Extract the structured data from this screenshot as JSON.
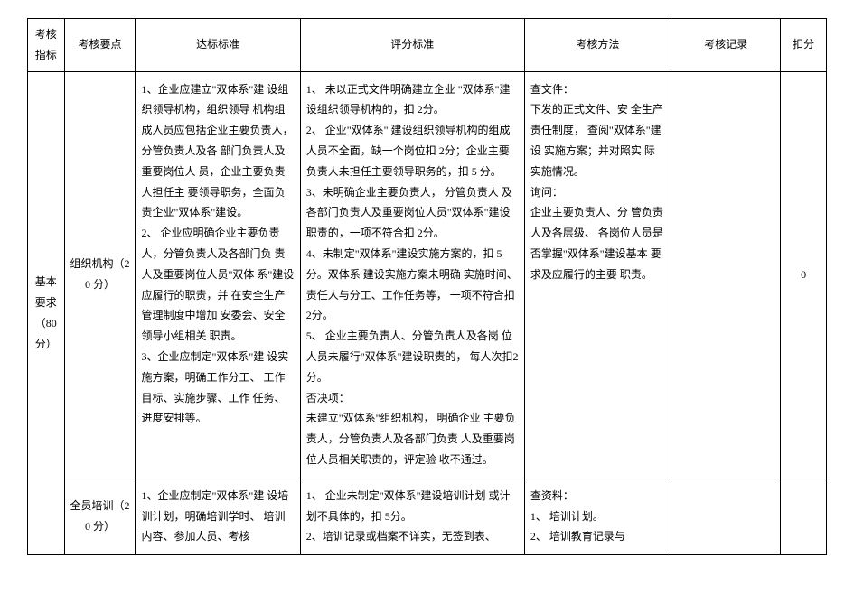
{
  "header": {
    "c1": "考核指标",
    "c2": "考核要点",
    "c3": "达标标准",
    "c4": "评分标准",
    "c5": "考核方法",
    "c6": "考核记录",
    "c7": "扣分"
  },
  "rows": {
    "indicator": "基本要求（80分）",
    "r1": {
      "point": "组织机构（20 分）",
      "standard": "1、企业应建立\"双体系\"建 设组织领导机构，组织领导 机构组成人员应包括企业主要负责人，分管负责人及各 部门负责人及重要岗位人 员，企业主要负责人担任主 要领导职务，全面负责企业\"双体系\"建设。\n2、 企业应明确企业主要负责人，分管负责人及各部门负 责人及重要岗位人员\"双体 系\"建设应履行的职责，并 在安全生产管理制度中增加 安委会、安全领导小组相关 职责。\n3、企业应制定\"双体系\"建 设实施方案，明确工作分工、 工作目标、实施步骤、工作 任务、进度安排等。",
      "score": "1、 未以正式文件明确建立企业 \"双体系\"建设组织领导机构的，扣 2分。\n2、 企业\"双体系\" 建设组织领导机构的组成人员不全面，缺一个岗位扣   2分；企业主要负责人未担任主要领导职务的，扣 5 分。\n3、未明确企业主要负责人， 分管负责人 及各部门负责人及重要岗位人员\"双体系\"建设职责的，一项不符合扣   2分。\n4、未制定\"双体系\"建设实施方案的，扣 5 分。双体系 建设实施方案未明确 实施时间、责任人与分工、工作任务等， 一项不符合扣 2分。\n5、 企业主要负责人、分管负责人及各岗 位人员未履行\"双体系\"建设职责的， 每人次扣2分。\n否决项：\n未建立\"双体系\"组织机构， 明确企业 主要负责人，分管负责人及各部门负责 人及重要岗位人员相关职责的，评定验 收不通过。",
      "method": "查文件：\n下发的正式文件、安 全生产责任制度， 查阅\"双体系\"建设 实施方案；并对照实 际实施情况。\n询问：\n企业主要负责人、分 管负责人及各层级、 各岗位人员是否掌握\"双体系\"建设基本 要求及应履行的主要 职责。",
      "record": "",
      "deduct": "0"
    },
    "r2": {
      "point": "全员培训（20 分）",
      "standard": "1、企业应制定\"双体系\"建 设培训计划，明确培训学时、 培训内容、参加人员、考核",
      "score": "1、 企业未制定\"双体系\"建设培训计划 或计划不具体的，扣 5分。\n2、培训记录或档案不详实，无签到表、",
      "method": "查资料：\n1、 培训计划。\n2、 培训教育记录与",
      "record": "",
      "deduct": ""
    }
  }
}
